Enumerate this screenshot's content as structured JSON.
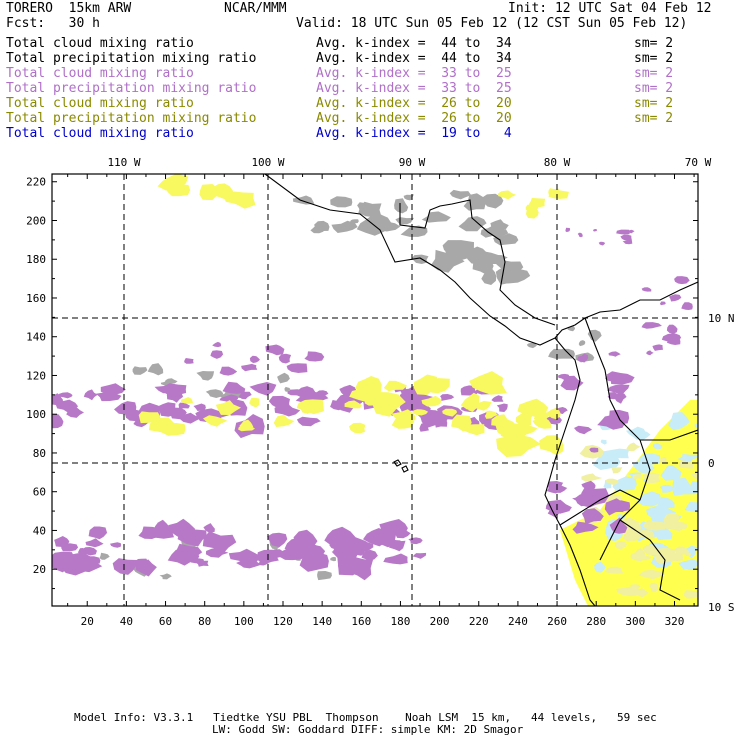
{
  "header": {
    "model": "TORERO  15km ARW",
    "org": "NCAR/MMM",
    "init": "Init: 12 UTC Sat 04 Feb 12",
    "fcst": "Fcst:   30 h",
    "valid": "Valid: 18 UTC Sun 05 Feb 12 (12 CST Sun 05 Feb 12)"
  },
  "fields": [
    {
      "name": "Total cloud mixing ratio",
      "kindex": "Avg. k-index =  44 to  34",
      "sm": "sm= 2",
      "color": "#000000"
    },
    {
      "name": "Total precipitation mixing ratio",
      "kindex": "Avg. k-index =  44 to  34",
      "sm": "sm= 2",
      "color": "#000000"
    },
    {
      "name": "Total cloud mixing ratio",
      "kindex": "Avg. k-index =  33 to  25",
      "sm": "sm= 2",
      "color": "#b070c8"
    },
    {
      "name": "Total precipitation mixing ratio",
      "kindex": "Avg. k-index =  33 to  25",
      "sm": "sm= 2",
      "color": "#b070c8"
    },
    {
      "name": "Total cloud mixing ratio",
      "kindex": "Avg. k-index =  26 to  20",
      "sm": "sm= 2",
      "color": "#8a8a00"
    },
    {
      "name": "Total precipitation mixing ratio",
      "kindex": "Avg. k-index =  26 to  20",
      "sm": "sm= 2",
      "color": "#8a8a00"
    },
    {
      "name": "Total cloud mixing ratio",
      "kindex": "Avg. k-index =  19 to   4",
      "sm": "",
      "color": "#0000cc"
    }
  ],
  "axes": {
    "x_ticks": [
      "20",
      "40",
      "60",
      "80",
      "100",
      "120",
      "140",
      "160",
      "180",
      "200",
      "220",
      "240",
      "260",
      "280",
      "300",
      "320"
    ],
    "y_ticks": [
      "20",
      "40",
      "60",
      "80",
      "100",
      "120",
      "140",
      "160",
      "180",
      "200",
      "220"
    ],
    "lon_labels": [
      "110 W",
      "100 W",
      "90 W",
      "80 W",
      "70 W"
    ],
    "lat_labels": [
      "10 N",
      "0",
      "10 S"
    ]
  },
  "footer": {
    "line1": "Model Info: V3.3.1   Tiedtke YSU PBL  Thompson    Noah LSM  15 km,   44 levels,   59 sec",
    "line2": "LW: Godd SW: Goddard DIFF: simple KM: 2D Smagor"
  },
  "colors": {
    "gray_cloud": "#a8a8a8",
    "purple": "#b878c8",
    "yellow": "#f8f860",
    "light_blue": "#c8ecf8",
    "bright_yellow": "#ffff30"
  }
}
